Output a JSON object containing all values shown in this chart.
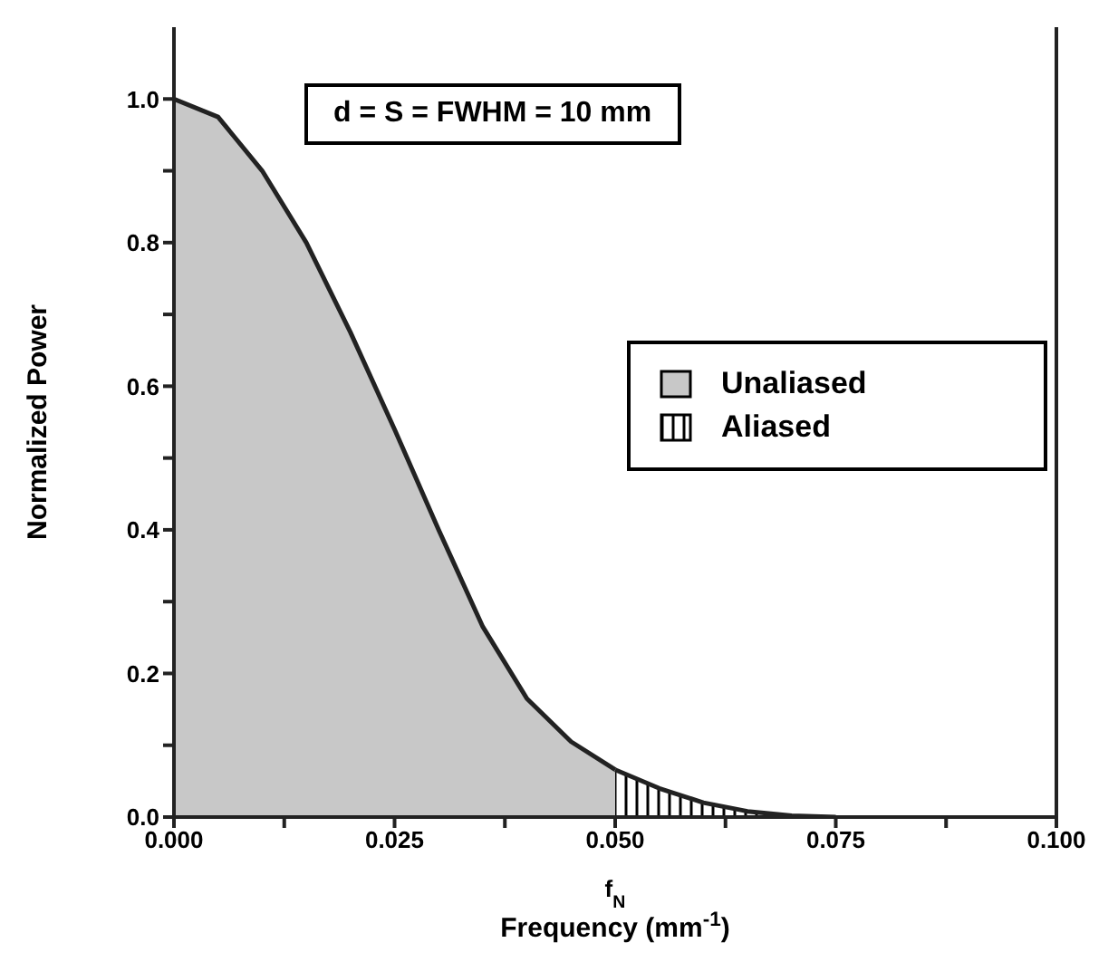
{
  "chart_data": {
    "type": "area",
    "xlabel": "Frequency (mm$^{-1}$)",
    "ylabel": "Normalized  Power",
    "annotations": [
      "d = S = FWHM = 10 mm",
      {
        "text": "f$_{N}$",
        "x": 0.05,
        "y": 0
      }
    ],
    "xlim": [
      0,
      0.1
    ],
    "ylim": [
      0,
      1.1
    ],
    "xticks": [
      {
        "value": 0,
        "label": "0.000"
      },
      {
        "value": 0.0125,
        "label": null
      },
      {
        "value": 0.025,
        "label": "0.025"
      },
      {
        "value": 0.0375,
        "label": null
      },
      {
        "value": 0.05,
        "label": "0.050"
      },
      {
        "value": 0.0625,
        "label": null
      },
      {
        "value": 0.075,
        "label": "0.075"
      },
      {
        "value": 0.0875,
        "label": null
      },
      {
        "value": 0.1,
        "label": "0.100"
      }
    ],
    "yticks": [
      {
        "value": 0,
        "label": "0.0"
      },
      {
        "value": 0.1,
        "label": null
      },
      {
        "value": 0.2,
        "label": "0.2"
      },
      {
        "value": 0.3,
        "label": null
      },
      {
        "value": 0.4,
        "label": "0.4"
      },
      {
        "value": 0.5,
        "label": null
      },
      {
        "value": 0.6,
        "label": "0.6"
      },
      {
        "value": 0.7,
        "label": null
      },
      {
        "value": 0.8,
        "label": "0.8"
      },
      {
        "value": 0.9,
        "label": null
      },
      {
        "value": 1.0,
        "label": "1.0"
      }
    ],
    "legend": "right",
    "marker": "none",
    "series": [
      {
        "name": "Unaliased",
        "color": "#c8c8c8",
        "x": [
          0,
          0.005,
          0.01,
          0.015,
          0.02,
          0.025,
          0.03,
          0.035,
          0.04,
          0.045,
          0.05
        ],
        "values": [
          1.0,
          0.975,
          0.9,
          0.8,
          0.675,
          0.54,
          0.4,
          0.265,
          0.165,
          0.105,
          0.066
        ]
      },
      {
        "name": "Aliased",
        "color": "#000000",
        "x": [
          0.05,
          0.055,
          0.06,
          0.065,
          0.07,
          0.075
        ],
        "values": [
          0.066,
          0.04,
          0.02,
          0.008,
          0.002,
          0.0
        ]
      }
    ]
  }
}
